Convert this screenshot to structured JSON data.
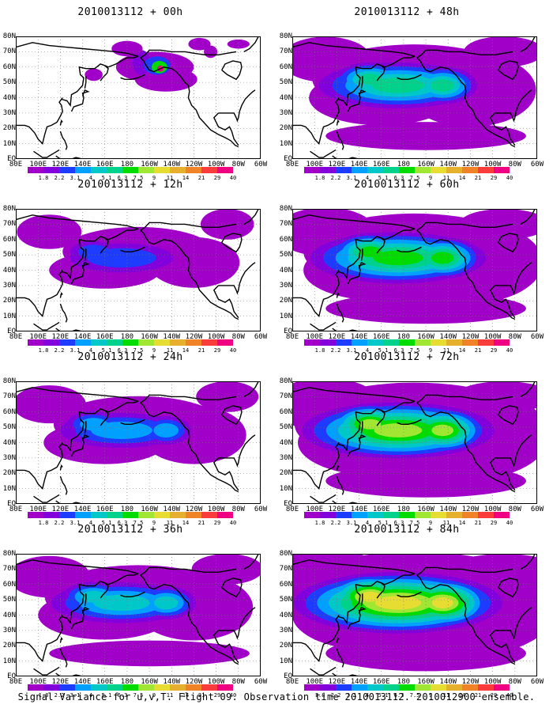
{
  "panels": [
    {
      "title": "2010013112 + 00h",
      "level": 0
    },
    {
      "title": "2010013112 + 48h",
      "level": 4
    },
    {
      "title": "2010013112 + 12h",
      "level": 1
    },
    {
      "title": "2010013112 + 60h",
      "level": 5
    },
    {
      "title": "2010013112 + 24h",
      "level": 2
    },
    {
      "title": "2010013112 + 72h",
      "level": 6
    },
    {
      "title": "2010013112 + 36h",
      "level": 3
    },
    {
      "title": "2010013112 + 84h",
      "level": 7
    }
  ],
  "lat_labels": [
    "80N",
    "70N",
    "60N",
    "50N",
    "40N",
    "30N",
    "20N",
    "10N",
    "EQ"
  ],
  "lon_labels": [
    "80E",
    "100E",
    "120E",
    "140E",
    "160E",
    "180",
    "160W",
    "140W",
    "120W",
    "100W",
    "80W",
    "60W"
  ],
  "colorbar": {
    "labels": [
      "1.8",
      "2.2",
      "3.1",
      "4",
      "5.1",
      "6.3",
      "7.5",
      "9",
      "11",
      "14",
      "21",
      "29",
      "40"
    ],
    "colors": [
      "#a000c8",
      "#8200dc",
      "#1e3cff",
      "#00a0ff",
      "#00c8c8",
      "#00d28c",
      "#00dc00",
      "#a0e632",
      "#e6dc32",
      "#e6af2d",
      "#f08228",
      "#fa3c3c",
      "#f00082"
    ]
  },
  "footer": "Signal Variance for u,v,T. Flight 09. Observation time 2010013112. 2010012900 ensemble."
}
